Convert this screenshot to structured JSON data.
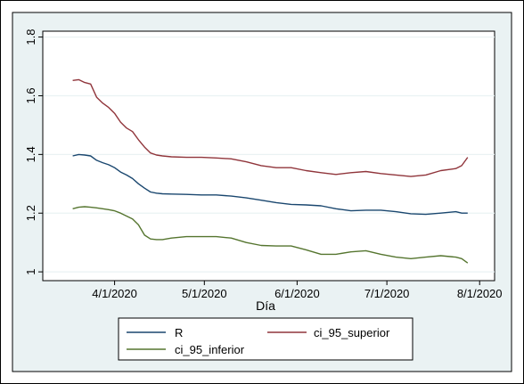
{
  "chart_data": {
    "type": "line",
    "title": "",
    "xlabel": "Día",
    "ylabel": "",
    "x_tick_labels": [
      "4/1/2020",
      "5/1/2020",
      "6/1/2020",
      "7/1/2020",
      "8/1/2020"
    ],
    "y_tick_labels": [
      "1",
      "1.2",
      "1.4",
      "1.6",
      "1.8"
    ],
    "xlim": [
      "2020-03-08",
      "2020-08-06"
    ],
    "ylim": [
      0.97,
      1.82
    ],
    "grid": true,
    "legend_position": "bottom",
    "x": [
      "2020-03-18",
      "2020-03-20",
      "2020-03-22",
      "2020-03-24",
      "2020-03-26",
      "2020-03-28",
      "2020-03-30",
      "2020-04-01",
      "2020-04-03",
      "2020-04-05",
      "2020-04-07",
      "2020-04-09",
      "2020-04-11",
      "2020-04-13",
      "2020-04-15",
      "2020-04-17",
      "2020-04-20",
      "2020-04-25",
      "2020-04-30",
      "2020-05-05",
      "2020-05-10",
      "2020-05-15",
      "2020-05-20",
      "2020-05-25",
      "2020-05-30",
      "2020-06-04",
      "2020-06-09",
      "2020-06-14",
      "2020-06-19",
      "2020-06-24",
      "2020-06-29",
      "2020-07-04",
      "2020-07-09",
      "2020-07-14",
      "2020-07-19",
      "2020-07-24",
      "2020-07-26",
      "2020-07-28"
    ],
    "series": [
      {
        "name": "R",
        "color": "#1a476f",
        "values": [
          1.395,
          1.4,
          1.398,
          1.395,
          1.38,
          1.372,
          1.365,
          1.355,
          1.34,
          1.33,
          1.318,
          1.3,
          1.285,
          1.272,
          1.268,
          1.266,
          1.265,
          1.264,
          1.262,
          1.262,
          1.258,
          1.252,
          1.244,
          1.236,
          1.23,
          1.228,
          1.225,
          1.215,
          1.208,
          1.21,
          1.21,
          1.205,
          1.198,
          1.196,
          1.2,
          1.205,
          1.2,
          1.2
        ]
      },
      {
        "name": "ci_95_superior",
        "color": "#90353b",
        "values": [
          1.652,
          1.655,
          1.645,
          1.64,
          1.595,
          1.575,
          1.56,
          1.54,
          1.51,
          1.49,
          1.478,
          1.45,
          1.425,
          1.405,
          1.398,
          1.395,
          1.392,
          1.39,
          1.39,
          1.388,
          1.385,
          1.375,
          1.362,
          1.355,
          1.355,
          1.345,
          1.338,
          1.332,
          1.338,
          1.342,
          1.335,
          1.33,
          1.325,
          1.33,
          1.345,
          1.352,
          1.362,
          1.39
        ]
      },
      {
        "name": "ci_95_inferior",
        "color": "#55752f",
        "values": [
          1.215,
          1.22,
          1.222,
          1.22,
          1.218,
          1.215,
          1.212,
          1.208,
          1.2,
          1.19,
          1.18,
          1.16,
          1.125,
          1.112,
          1.11,
          1.11,
          1.115,
          1.12,
          1.12,
          1.12,
          1.115,
          1.1,
          1.09,
          1.088,
          1.088,
          1.075,
          1.06,
          1.06,
          1.068,
          1.072,
          1.06,
          1.05,
          1.045,
          1.05,
          1.055,
          1.05,
          1.045,
          1.03
        ]
      }
    ]
  },
  "colors": {
    "outer_background": "#eaf2f3",
    "plot_background": "#ffffff",
    "grid": "#eaf2f3"
  }
}
